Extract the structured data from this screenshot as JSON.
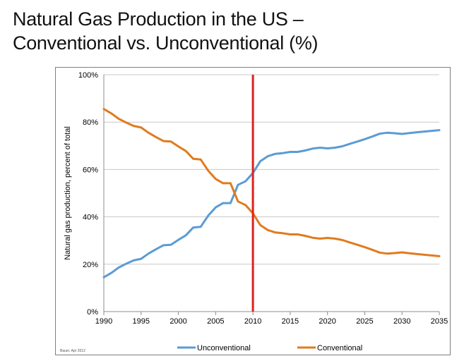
{
  "title_line1": "Natural Gas Production in the US –",
  "title_line2": "Conventional vs. Unconventional (%)",
  "credit": "Bauer, Apr 2012",
  "colors": {
    "unconventional": "#5b9bd5",
    "conventional": "#e07b1f",
    "marker": "#e0201c"
  },
  "chart_data": {
    "type": "line",
    "ylabel": "Natural gas production, percent of total",
    "xlabel": "",
    "xlim": [
      1990,
      2035
    ],
    "ylim": [
      0,
      100
    ],
    "x_ticks": [
      1990,
      1995,
      2000,
      2005,
      2010,
      2015,
      2020,
      2025,
      2030,
      2035
    ],
    "y_ticks": [
      "0%",
      "20%",
      "40%",
      "60%",
      "80%",
      "100%"
    ],
    "y_tick_values": [
      0,
      20,
      40,
      60,
      80,
      100
    ],
    "grid": "horizontal",
    "legend_position": "bottom",
    "vertical_marker_x": 2010,
    "x": [
      1990,
      1991,
      1992,
      1993,
      1994,
      1995,
      1996,
      1997,
      1998,
      1999,
      2000,
      2001,
      2002,
      2003,
      2004,
      2005,
      2006,
      2007,
      2008,
      2009,
      2010,
      2011,
      2012,
      2013,
      2014,
      2015,
      2016,
      2017,
      2018,
      2019,
      2020,
      2021,
      2022,
      2023,
      2024,
      2025,
      2026,
      2027,
      2028,
      2029,
      2030,
      2031,
      2032,
      2033,
      2034,
      2035
    ],
    "series": [
      {
        "name": "Unconventional",
        "values": [
          14.5,
          16.3,
          18.6,
          20.2,
          21.6,
          22.3,
          24.5,
          26.3,
          28.0,
          28.2,
          30.3,
          32.2,
          35.5,
          35.8,
          40.5,
          44.0,
          45.8,
          45.8,
          53.5,
          55.0,
          58.5,
          63.5,
          65.6,
          66.6,
          66.9,
          67.4,
          67.4,
          68.0,
          68.8,
          69.2,
          68.9,
          69.2,
          69.8,
          70.8,
          71.8,
          72.8,
          73.9,
          75.1,
          75.5,
          75.3,
          75.0,
          75.4,
          75.7,
          76.0,
          76.3,
          76.6
        ]
      },
      {
        "name": "Conventional",
        "values": [
          85.5,
          83.7,
          81.4,
          79.8,
          78.4,
          77.7,
          75.5,
          73.7,
          72.0,
          71.8,
          69.7,
          67.8,
          64.5,
          64.2,
          59.5,
          56.0,
          54.2,
          54.2,
          46.5,
          45.0,
          41.5,
          36.5,
          34.4,
          33.4,
          33.1,
          32.6,
          32.6,
          32.0,
          31.2,
          30.8,
          31.1,
          30.8,
          30.2,
          29.2,
          28.2,
          27.2,
          26.1,
          24.9,
          24.5,
          24.7,
          25.0,
          24.6,
          24.3,
          24.0,
          23.7,
          23.4
        ]
      }
    ]
  }
}
